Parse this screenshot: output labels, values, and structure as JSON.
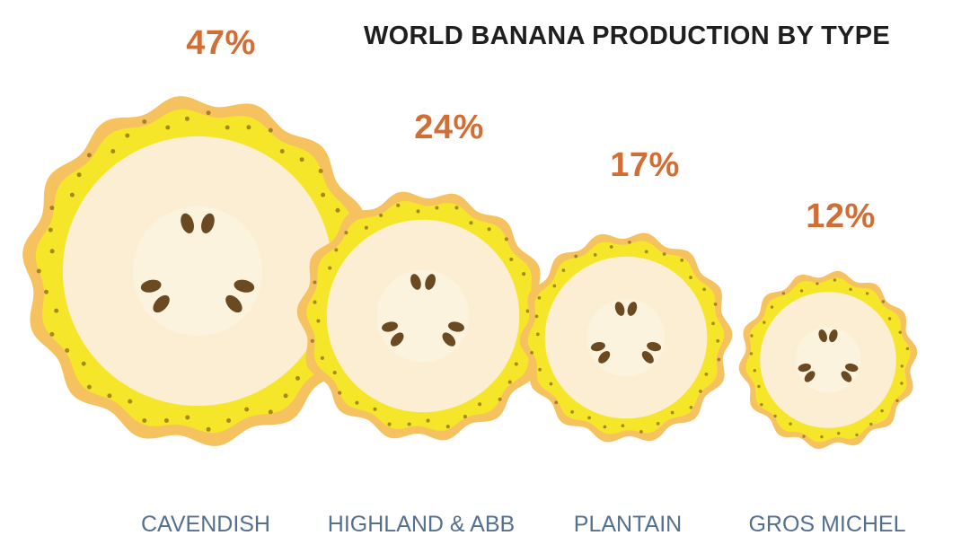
{
  "chart_data": {
    "type": "bar",
    "title": "WORLD BANANA PRODUCTION BY TYPE",
    "categories": [
      "CAVENDISH",
      "HIGHLAND & ABB",
      "PLANTAIN",
      "GROS MICHEL"
    ],
    "values": [
      47,
      24,
      17,
      12
    ],
    "value_labels": [
      "47%",
      "24%",
      "17%",
      "12%"
    ],
    "unit": "%",
    "marks": "banana slice circles, sized by share",
    "colors": {
      "peel_outer": "#f6c25f",
      "peel_inner": "#f5e62a",
      "flesh": "#fbeed2",
      "seeds": "#6b4a22",
      "pct_text": "#d26d33",
      "category_text": "#55708f",
      "title_text": "#1f1f1f"
    }
  }
}
